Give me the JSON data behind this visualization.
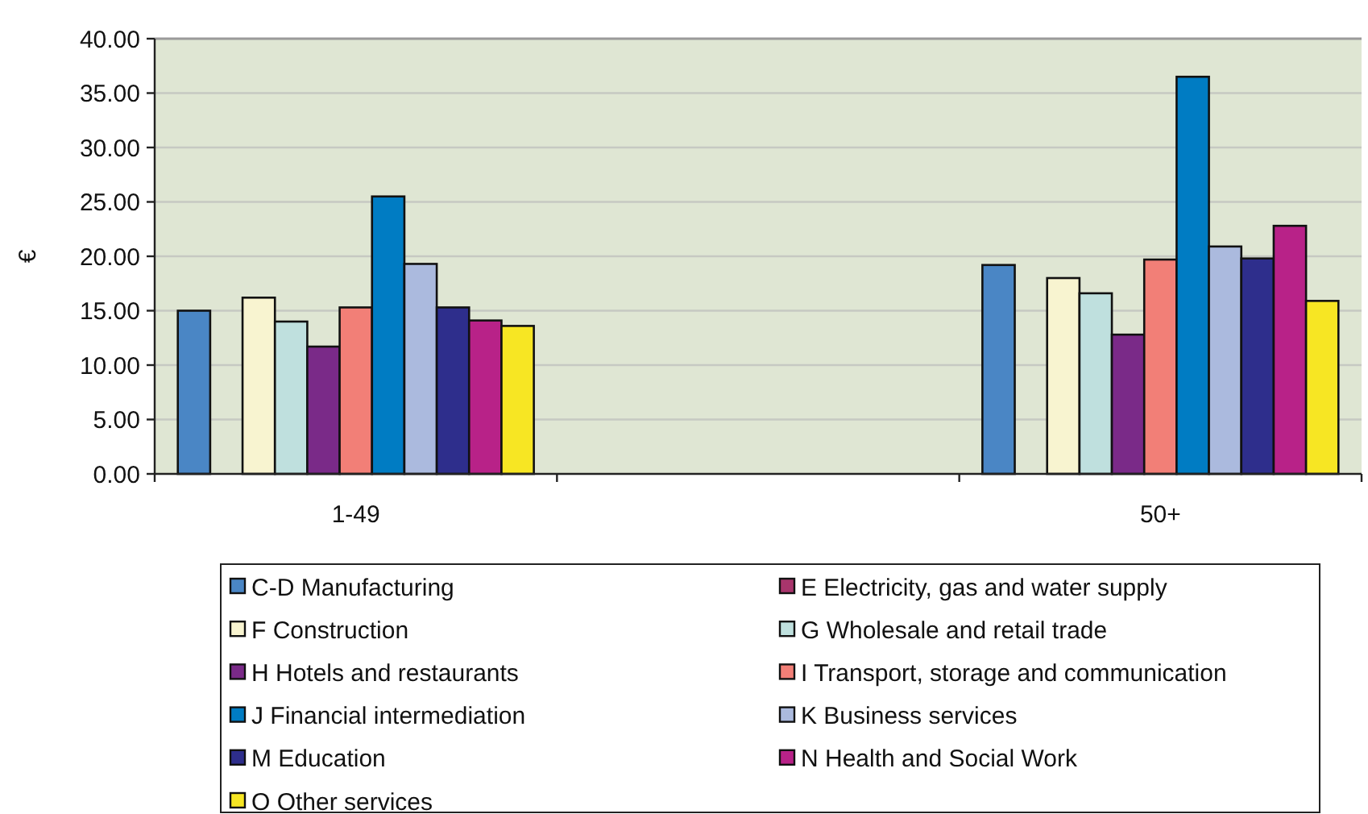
{
  "chart_data": {
    "type": "bar",
    "categories": [
      "1-49",
      null,
      "50+"
    ],
    "ylabel": "€",
    "ylim": [
      0,
      40
    ],
    "yticks": [
      {
        "value": 0,
        "label": "0.00"
      },
      {
        "value": 5,
        "label": "5.00"
      },
      {
        "value": 10,
        "label": "10.00"
      },
      {
        "value": 15,
        "label": "15.00"
      },
      {
        "value": 20,
        "label": "20.00"
      },
      {
        "value": 25,
        "label": "25.00"
      },
      {
        "value": 30,
        "label": "30.00"
      },
      {
        "value": 35,
        "label": "35.00"
      },
      {
        "value": 40,
        "label": "40.00"
      }
    ],
    "grid": "y",
    "legend": "bottom",
    "series": [
      {
        "name": "C-D Manufacturing",
        "color": "#4a86c5",
        "values": [
          15.0,
          null,
          19.2
        ]
      },
      {
        "name": "E Electricity, gas and water supply",
        "color": "#a8356c",
        "values": [
          null,
          null,
          null
        ]
      },
      {
        "name": "F Construction",
        "color": "#f8f4d0",
        "values": [
          16.2,
          null,
          18.0
        ]
      },
      {
        "name": "G Wholesale and retail trade",
        "color": "#bfe0de",
        "values": [
          14.0,
          null,
          16.6
        ]
      },
      {
        "name": "H Hotels and restaurants",
        "color": "#7a2a88",
        "values": [
          11.7,
          null,
          12.8
        ]
      },
      {
        "name": "I Transport, storage and communication",
        "color": "#f27f77",
        "values": [
          15.3,
          null,
          19.7
        ]
      },
      {
        "name": "J Financial intermediation",
        "color": "#007cc3",
        "values": [
          25.5,
          null,
          36.5
        ]
      },
      {
        "name": "K Business services",
        "color": "#abbade",
        "values": [
          19.3,
          null,
          20.9
        ]
      },
      {
        "name": "M Education",
        "color": "#2e2e8c",
        "values": [
          15.3,
          null,
          19.8
        ]
      },
      {
        "name": "N Health and Social Work",
        "color": "#b82288",
        "values": [
          14.1,
          null,
          22.8
        ]
      },
      {
        "name": "O Other services",
        "color": "#f7e623",
        "values": [
          13.6,
          null,
          15.9
        ]
      }
    ]
  }
}
